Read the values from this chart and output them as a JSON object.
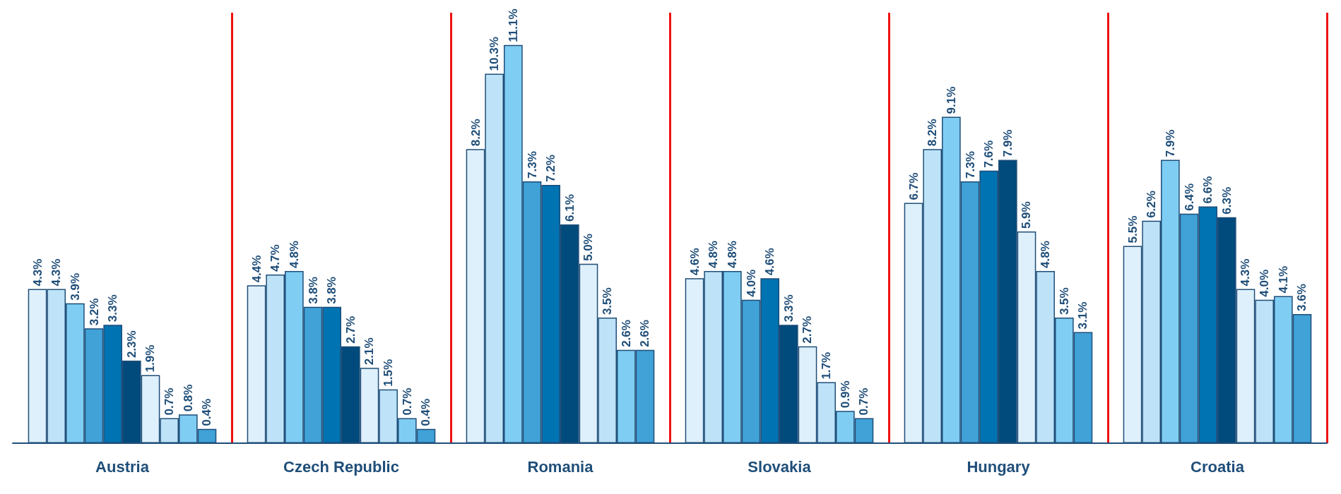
{
  "chart_data": {
    "type": "bar",
    "categories": [
      "Austria",
      "Czech Republic",
      "Romania",
      "Slovakia",
      "Hungary",
      "Croatia"
    ],
    "series": [
      {
        "color": "#def0fb",
        "values": [
          4.3,
          4.4,
          8.2,
          4.6,
          6.7,
          5.5
        ],
        "value_labels": [
          "4.3%",
          "4.4%",
          "8.2%",
          "4.6%",
          "6.7%",
          "5.5%"
        ]
      },
      {
        "color": "#bee3f8",
        "values": [
          4.3,
          4.7,
          10.3,
          4.8,
          8.2,
          6.2
        ],
        "value_labels": [
          "4.3%",
          "4.7%",
          "10.3%",
          "4.8%",
          "8.2%",
          "6.2%"
        ]
      },
      {
        "color": "#7fcdf3",
        "values": [
          3.9,
          4.8,
          11.1,
          4.8,
          9.1,
          7.9
        ],
        "value_labels": [
          "3.9%",
          "4.8%",
          "11.1%",
          "4.8%",
          "9.1%",
          "7.9%"
        ]
      },
      {
        "color": "#40a2d7",
        "values": [
          3.2,
          3.8,
          7.3,
          4.0,
          7.3,
          6.4
        ],
        "value_labels": [
          "3.2%",
          "3.8%",
          "7.3%",
          "4.0%",
          "7.3%",
          "6.4%"
        ]
      },
      {
        "color": "#0073b2",
        "values": [
          3.3,
          3.8,
          7.2,
          4.6,
          7.6,
          6.6
        ],
        "value_labels": [
          "3.3%",
          "3.8%",
          "7.2%",
          "4.6%",
          "7.6%",
          "6.6%"
        ]
      },
      {
        "color": "#004a7c",
        "values": [
          2.3,
          2.7,
          6.1,
          3.3,
          7.9,
          6.3
        ],
        "value_labels": [
          "2.3%",
          "2.7%",
          "6.1%",
          "3.3%",
          "7.9%",
          "6.3%"
        ]
      },
      {
        "color": "#def0fb",
        "values": [
          1.9,
          2.1,
          5.0,
          2.7,
          5.9,
          4.3
        ],
        "value_labels": [
          "1.9%",
          "2.1%",
          "5.0%",
          "2.7%",
          "5.9%",
          "4.3%"
        ]
      },
      {
        "color": "#bee3f8",
        "values": [
          0.7,
          1.5,
          3.5,
          1.7,
          4.8,
          4.0
        ],
        "value_labels": [
          "0.7%",
          "1.5%",
          "3.5%",
          "1.7%",
          "4.8%",
          "4.0%"
        ]
      },
      {
        "color": "#7fcdf3",
        "values": [
          0.8,
          0.7,
          2.6,
          0.9,
          3.5,
          4.1
        ],
        "value_labels": [
          "0.8%",
          "0.7%",
          "2.6%",
          "0.9%",
          "3.5%",
          "4.1%"
        ]
      },
      {
        "color": "#40a2d7",
        "values": [
          0.4,
          0.4,
          2.6,
          0.7,
          3.1,
          3.6
        ],
        "value_labels": [
          "0.4%",
          "0.4%",
          "2.6%",
          "0.7%",
          "3.1%",
          "3.6%"
        ]
      }
    ],
    "grid": "x"
  }
}
